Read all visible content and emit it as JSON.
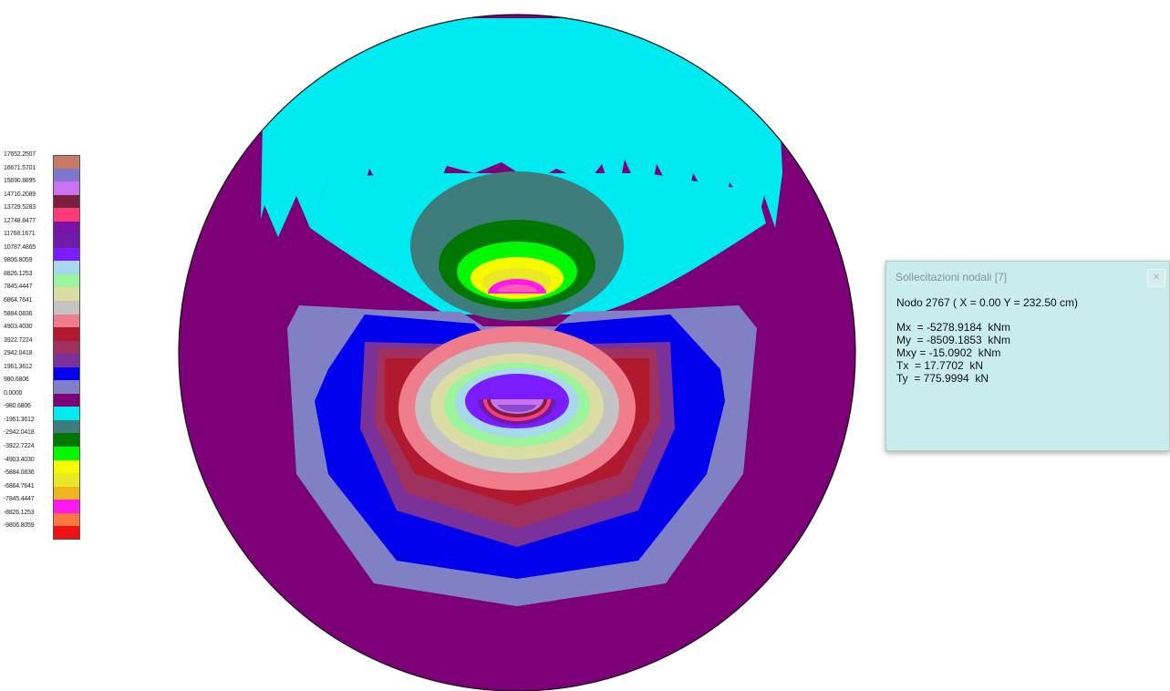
{
  "legend": {
    "items": [
      {
        "label": "17652.2507",
        "color": "#c87a66"
      },
      {
        "label": "16671.5701",
        "color": "#7f77cc"
      },
      {
        "label": "15690.8895",
        "color": "#c973f0"
      },
      {
        "label": "14710.2089",
        "color": "#7a1f3c"
      },
      {
        "label": "13729.5283",
        "color": "#ff3a78"
      },
      {
        "label": "12748.8477",
        "color": "#7a12a8"
      },
      {
        "label": "11768.1671",
        "color": "#6e1ca6"
      },
      {
        "label": "10787.4865",
        "color": "#7a1cff"
      },
      {
        "label": "9806.8059",
        "color": "#a6d9ec"
      },
      {
        "label": "8826.1253",
        "color": "#9cf59c"
      },
      {
        "label": "7845.4447",
        "color": "#dcdca5"
      },
      {
        "label": "6864.7641",
        "color": "#c4c4c4"
      },
      {
        "label": "5884.0836",
        "color": "#ef7d8c"
      },
      {
        "label": "4903.4030",
        "color": "#b0192e"
      },
      {
        "label": "3922.7224",
        "color": "#a0305e"
      },
      {
        "label": "2942.0418",
        "color": "#7a3199"
      },
      {
        "label": "1961.3612",
        "color": "#0000ee"
      },
      {
        "label": "980.6806",
        "color": "#8080c4"
      },
      {
        "label": "0.0000",
        "color": "#7d0078"
      },
      {
        "label": "-980.6806",
        "color": "#00eaf2"
      },
      {
        "label": "-1961.3612",
        "color": "#3f7d7d"
      },
      {
        "label": "-2942.0418",
        "color": "#007800"
      },
      {
        "label": "-3922.7224",
        "color": "#00f800"
      },
      {
        "label": "-4903.4030",
        "color": "#f8f800"
      },
      {
        "label": "-5884.0836",
        "color": "#e8e824"
      },
      {
        "label": "-6864.7641",
        "color": "#f0b41e"
      },
      {
        "label": "-7845.4447",
        "color": "#ff18f0"
      },
      {
        "label": "-8826.1253",
        "color": "#ff7840"
      },
      {
        "label": "-9806.8059",
        "color": "#f21010"
      }
    ]
  },
  "panel": {
    "title": "Sollecitazioni nodali [7]",
    "close_icon": "close-icon",
    "node": "Nodo 2767  ( X = 0.00 Y = 232.50  cm)",
    "results": [
      "Mx  = -5278.9184  kNm",
      "My  = -8509.1853  kNm",
      "Mxy = -15.0902  kNm",
      "Tx  = 17.7702  kN",
      "Ty  = 775.9994  kN"
    ]
  },
  "colors": {
    "panel_bg": "#c9ecec",
    "plate_outline": "#111111",
    "plate_base": "#7d0078"
  }
}
